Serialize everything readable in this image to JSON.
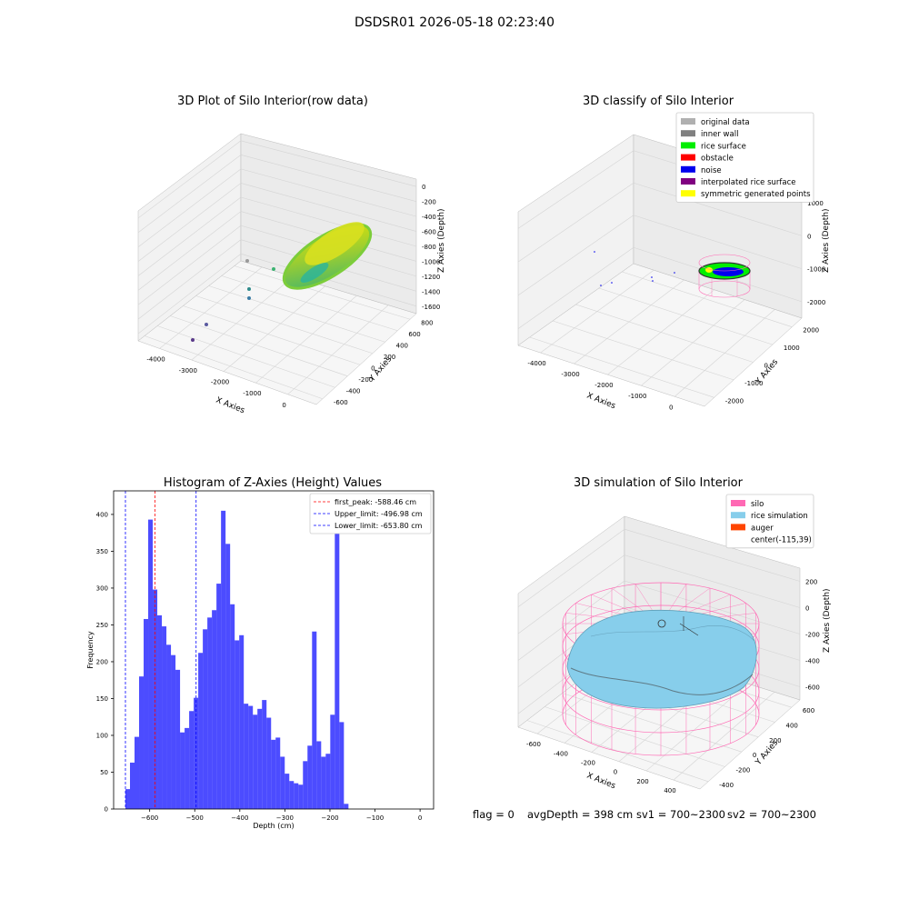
{
  "suptitle": "DSDSR01 2026-05-18 02:23:40",
  "panel_titles": {
    "raw": "3D Plot of Silo Interior(row data)",
    "classify": "3D classify of Silo Interior",
    "histogram": "Histogram of Z-Axies (Height) Values",
    "simulation": "3D simulation of Silo Interior"
  },
  "colors": {
    "original_data": "#b0b0b0",
    "inner_wall": "#808080",
    "rice_surface": "#00ee00",
    "obstacle": "#ff0000",
    "noise": "#0000ee",
    "interpolated_rice_surface": "#800080",
    "symmetric_generated_points": "#ffff00",
    "silo": "#ff69b4",
    "rice_simulation": "#87ceeb",
    "auger": "#ff4500",
    "histogram_bars": "#0000ff",
    "first_peak_line": "#ff0000",
    "limit_lines": "#0000ff"
  },
  "panel_raw": {
    "x_label": "X Axies",
    "y_label": "Y Axies",
    "z_label": "Z Axies (Depth)",
    "x_ticks": [
      "-4000",
      "-3000",
      "-2000",
      "-1000",
      "0"
    ],
    "y_ticks": [
      "-600",
      "-400",
      "-200",
      "0",
      "200",
      "400",
      "600",
      "800"
    ],
    "z_ticks": [
      "0",
      "-200",
      "-400",
      "-600",
      "-800",
      "-1000",
      "-1200",
      "-1400",
      "-1600"
    ]
  },
  "panel_classify": {
    "x_label": "X Axies",
    "y_label": "Y Axies",
    "z_label": "Z Axies (Depth)",
    "x_ticks": [
      "-4000",
      "-3000",
      "-2000",
      "-1000",
      "0"
    ],
    "y_ticks": [
      "-2000",
      "-1000",
      "0",
      "1000",
      "2000"
    ],
    "z_ticks": [
      "1000",
      "0",
      "-1000",
      "-2000"
    ],
    "legend": [
      {
        "label": "original data",
        "color": "#b0b0b0"
      },
      {
        "label": "inner wall",
        "color": "#808080"
      },
      {
        "label": "rice surface",
        "color": "#00ee00"
      },
      {
        "label": "obstacle",
        "color": "#ff0000"
      },
      {
        "label": "noise",
        "color": "#0000ee"
      },
      {
        "label": "interpolated rice surface",
        "color": "#800080"
      },
      {
        "label": "symmetric generated points",
        "color": "#ffff00"
      }
    ]
  },
  "panel_simulation": {
    "x_label": "X Axies",
    "y_label": "Y Axies",
    "z_label": "Z Axies (Depth)",
    "x_ticks": [
      "-600",
      "-400",
      "-200",
      "0",
      "200",
      "400"
    ],
    "y_ticks": [
      "-400",
      "-200",
      "0",
      "200",
      "400",
      "600"
    ],
    "z_ticks": [
      "200",
      "0",
      "-200",
      "-400",
      "-600"
    ],
    "legend": [
      {
        "label": "silo",
        "color": "#ff69b4"
      },
      {
        "label": "rice simulation",
        "color": "#87ceeb"
      },
      {
        "label": "auger",
        "color": "#ff4500"
      },
      {
        "label": "center(-115,39)",
        "color": ""
      }
    ]
  },
  "footer": {
    "flag": "flag = 0",
    "avg": "avgDepth = 398 cm",
    "sv1": "sv1 = 700~2300",
    "sv2": "sv2 = 700~2300"
  },
  "chart_data": {
    "type": "bar",
    "title": "Histogram of Z-Axies (Height) Values",
    "xlabel": "Depth (cm)",
    "ylabel": "Frequency",
    "xlim": [
      -680,
      30
    ],
    "ylim": [
      0,
      432
    ],
    "xticks": [
      -600,
      -500,
      -400,
      -300,
      -200,
      -100,
      0
    ],
    "yticks": [
      0,
      50,
      100,
      150,
      200,
      250,
      300,
      350,
      400
    ],
    "bins_start": -653.8,
    "bin_width": 10.1,
    "values": [
      27,
      63,
      98,
      180,
      258,
      393,
      298,
      263,
      248,
      223,
      209,
      189,
      104,
      110,
      133,
      151,
      212,
      244,
      260,
      270,
      306,
      405,
      360,
      278,
      229,
      236,
      143,
      140,
      128,
      136,
      148,
      124,
      94,
      97,
      71,
      48,
      38,
      35,
      33,
      65,
      86,
      241,
      92,
      71,
      75,
      128,
      407,
      118,
      7
    ],
    "vlines": [
      {
        "label": "first_peak: -588.46 cm",
        "x": -588.46,
        "color": "#ff0000"
      },
      {
        "label": "Upper_limit: -496.98 cm",
        "x": -496.98,
        "color": "#0000ff"
      },
      {
        "label": "Lower_limit: -653.80 cm",
        "x": -653.8,
        "color": "#0000ff"
      }
    ]
  }
}
